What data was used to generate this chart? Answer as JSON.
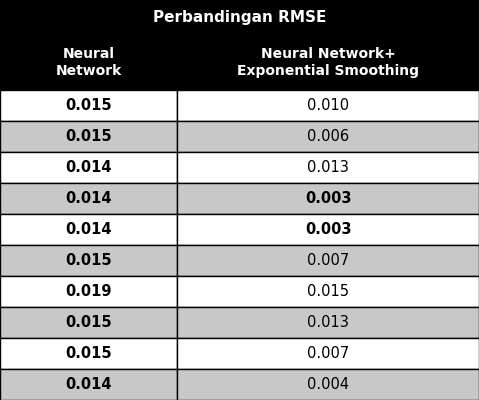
{
  "title_row": "Perbandingan RMSE",
  "col1_header": "Neural\nNetwork",
  "col2_header": "Neural Network+\nExponential Smoothing",
  "col1_values": [
    "0.015",
    "0.015",
    "0.014",
    "0.014",
    "0.014",
    "0.015",
    "0.019",
    "0.015",
    "0.015",
    "0.014"
  ],
  "col2_values": [
    "0.010",
    "0.006",
    "0.013",
    "0.003",
    "0.003",
    "0.007",
    "0.015",
    "0.013",
    "0.007",
    "0.004"
  ],
  "col1_bold": [
    true,
    true,
    true,
    true,
    true,
    true,
    true,
    true,
    true,
    true
  ],
  "col2_bold": [
    false,
    false,
    false,
    true,
    true,
    false,
    false,
    false,
    false,
    false
  ],
  "row_colors": [
    "#ffffff",
    "#c8c8c8",
    "#ffffff",
    "#c8c8c8",
    "#ffffff",
    "#c8c8c8",
    "#ffffff",
    "#c8c8c8",
    "#ffffff",
    "#c8c8c8"
  ],
  "header_bg": "#000000",
  "header_fg": "#ffffff",
  "title_bg": "#000000",
  "title_fg": "#ffffff",
  "border_color": "#000000",
  "fig_width": 4.79,
  "fig_height": 4.0,
  "dpi": 100
}
